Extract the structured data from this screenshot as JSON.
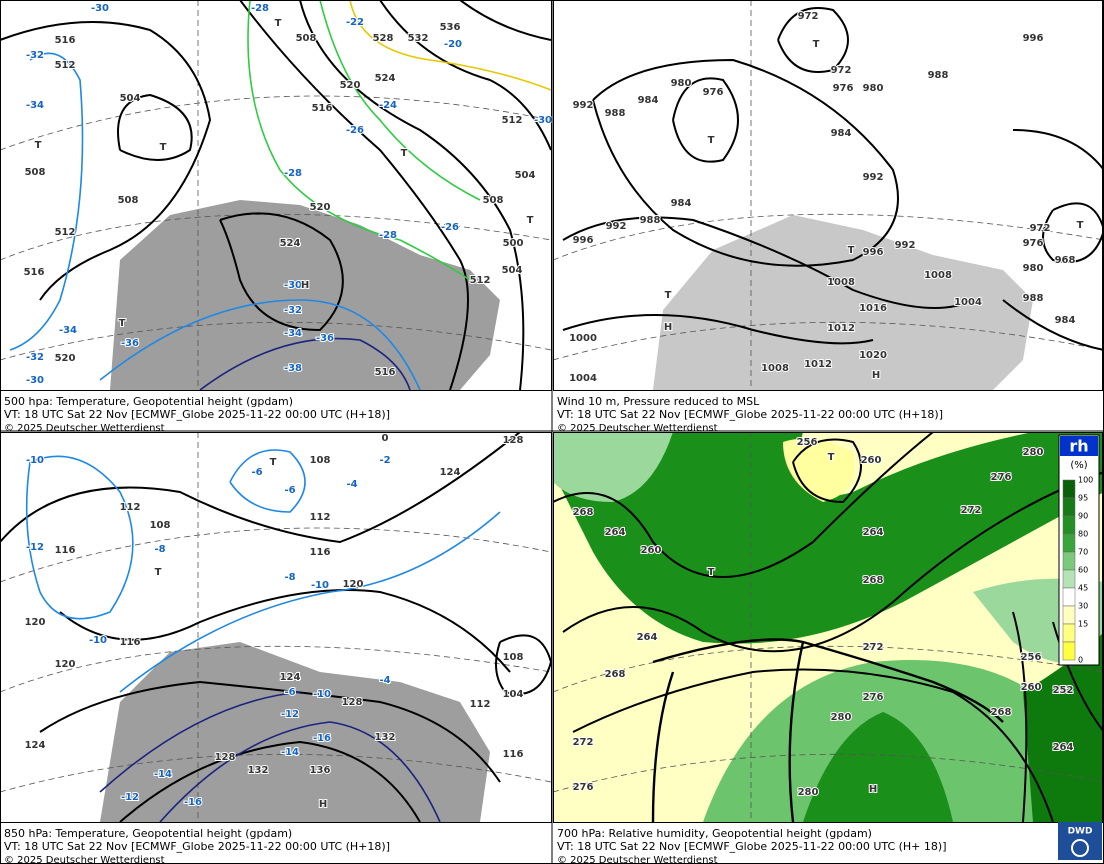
{
  "panels": [
    {
      "caption": [
        "500 hpa: Temperature, Geopotential height (gpdam)",
        "VT: 18 UTC Sat  22 Nov [ECMWF_Globe 2025-11-22 00:00 UTC  (H+18)]",
        "© 2025 Deutscher Wetterdienst"
      ],
      "labels": [
        "516",
        "512",
        "504",
        "508",
        "508",
        "512",
        "516",
        "520",
        "520",
        "524",
        "516",
        "508",
        "520",
        "524",
        "528",
        "532",
        "536",
        "512",
        "504",
        "508",
        "500",
        "504",
        "512",
        "516",
        "-30",
        "-28",
        "-22",
        "-20",
        "-24",
        "-26",
        "-28",
        "-26",
        "-28",
        "-30",
        "-30",
        "-32",
        "-34",
        "-36",
        "-38",
        "-34",
        "-36",
        "-32",
        "-30",
        "-32",
        "-34",
        "T",
        "T",
        "T",
        "T",
        "T",
        "H",
        "T"
      ]
    },
    {
      "caption": [
        "Wind 10 m, Pressure reduced to MSL",
        "VT: 18 UTC Sat  22 Nov [ECMWF_Globe 2025-11-22 00:00 UTC  (H+18)]",
        "© 2025 Deutscher Wetterdienst"
      ],
      "labels": [
        "972",
        "972",
        "976",
        "980",
        "988",
        "996",
        "980",
        "976",
        "984",
        "988",
        "992",
        "984",
        "992",
        "984",
        "988",
        "992",
        "996",
        "996",
        "992",
        "1008",
        "1008",
        "1004",
        "1016",
        "1012",
        "1020",
        "1012",
        "1008",
        "1000",
        "1004",
        "972",
        "976",
        "968",
        "980",
        "988",
        "984",
        "T",
        "T",
        "T",
        "T",
        "H",
        "T",
        "H"
      ]
    },
    {
      "caption": [
        "850 hPa:  Temperature, Geopotential height (gpdam)",
        "VT: 18 UTC Sat  22 Nov [ECMWF_Globe 2025-11-22 00:00 UTC  (H+18)]",
        "© 2025 Deutscher Wetterdienst"
      ],
      "labels": [
        "128",
        "124",
        "108",
        "112",
        "116",
        "120",
        "112",
        "108",
        "116",
        "120",
        "116",
        "120",
        "124",
        "112",
        "108",
        "104",
        "116",
        "124",
        "128",
        "132",
        "136",
        "132",
        "128",
        "0",
        "-2",
        "-4",
        "-6",
        "-6",
        "-8",
        "-8",
        "-10",
        "-12",
        "-10",
        "-10",
        "-4",
        "-6",
        "-10",
        "-12",
        "-14",
        "-16",
        "-14",
        "-16",
        "-12",
        "T",
        "T",
        "H"
      ]
    },
    {
      "caption": [
        "700 hPa:  Relative humidity, Geopotential height (gpdam)",
        "VT: 18 UTC Sat  22 Nov [ECMWF_Globe  2025-11-22 00:00 UTC  (H+ 18)]",
        "© 2025 Deutscher Wetterdienst"
      ],
      "labels": [
        "256",
        "260",
        "280",
        "276",
        "272",
        "268",
        "264",
        "260",
        "264",
        "268",
        "264",
        "268",
        "272",
        "276",
        "280",
        "272",
        "276",
        "280",
        "268",
        "260",
        "256",
        "252",
        "264",
        "T",
        "T",
        "H"
      ],
      "legend": {
        "title": "rh",
        "unit": "(%)",
        "levels": [
          "100",
          "95",
          "90",
          "80",
          "70",
          "60",
          "45",
          "30",
          "15",
          "0"
        ]
      },
      "logo": "DWD"
    }
  ]
}
